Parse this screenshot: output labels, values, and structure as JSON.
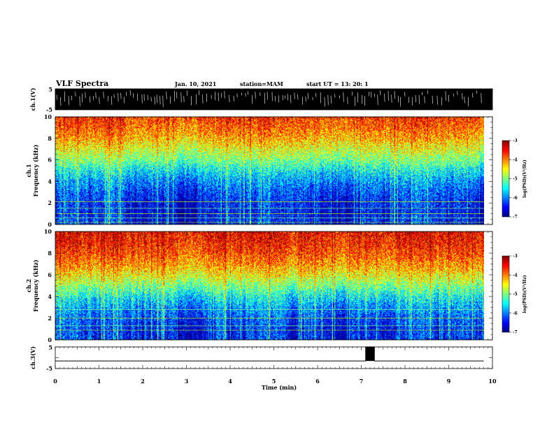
{
  "header": {
    "title": "VLF Spectra",
    "date": "Jan. 10, 2021",
    "station": "station=MAM",
    "start": "start UT = 13: 20: 1"
  },
  "chart_data": [
    {
      "type": "line",
      "panel": "ch1_waveform",
      "ylabel": "ch.1(V)",
      "ylim": [
        -5,
        5
      ],
      "yticks": [
        "5",
        "-5"
      ],
      "xlim": [
        0,
        10
      ],
      "note_visual": "dense burst waveform filling the full range over 0 to 9.8 min"
    },
    {
      "type": "heatmap",
      "panel": "ch1_spectrogram",
      "ylabel": "ch.1\nFrequency (kHz)",
      "ylabel_line1": "ch.1",
      "ylabel_line2": "Frequency (kHz)",
      "ylim": [
        0,
        10
      ],
      "yticks": [
        "0",
        "2",
        "4",
        "6",
        "8",
        "10"
      ],
      "xlim": [
        0,
        10
      ],
      "data_extent_min": 9.8,
      "colorbar": {
        "label": "log(PSD)(V²/Hz)",
        "range": [
          -7,
          -3
        ],
        "ticks": [
          "-3",
          "-4",
          "-5",
          "-6",
          "-7"
        ],
        "colors": [
          "#00007f",
          "#0000ff",
          "#007fff",
          "#00ffff",
          "#7fff7f",
          "#ffff00",
          "#ff7f00",
          "#ff0000",
          "#7f0000"
        ]
      },
      "profile": {
        "freq_khz": [
          0,
          1,
          2,
          3,
          4,
          5,
          6,
          7,
          8,
          9,
          10
        ],
        "log_psd_typical": [
          -6.4,
          -6.5,
          -6.4,
          -6.2,
          -5.9,
          -5.5,
          -5.0,
          -4.6,
          -4.2,
          -3.9,
          -3.7
        ]
      },
      "lines_khz": [
        0.2,
        0.6,
        1.0,
        1.5,
        2.1
      ]
    },
    {
      "type": "heatmap",
      "panel": "ch2_spectrogram",
      "ylabel_line1": "ch.2",
      "ylabel_line2": "Frequency (kHz)",
      "ylim": [
        0,
        10
      ],
      "yticks": [
        "0",
        "2",
        "4",
        "6",
        "8",
        "10"
      ],
      "xlim": [
        0,
        10
      ],
      "data_extent_min": 9.8,
      "colorbar": {
        "label": "log(PSD)(V²/Hz)",
        "range": [
          -7,
          -3
        ],
        "ticks": [
          "-3",
          "-4",
          "-5",
          "-6",
          "-7"
        ],
        "colors": [
          "#00007f",
          "#0000ff",
          "#007fff",
          "#00ffff",
          "#7fff7f",
          "#ffff00",
          "#ff7f00",
          "#ff0000",
          "#7f0000"
        ]
      },
      "profile": {
        "freq_khz": [
          0,
          1,
          2,
          3,
          4,
          5,
          6,
          7,
          8,
          9,
          10
        ],
        "log_psd_typical": [
          -6.4,
          -6.4,
          -6.2,
          -5.9,
          -5.5,
          -5.0,
          -4.5,
          -4.1,
          -3.8,
          -3.6,
          -3.5
        ]
      },
      "lines_khz": [
        0.9,
        1.3,
        2.0,
        2.8
      ]
    },
    {
      "type": "line",
      "panel": "ch3_waveform",
      "ylabel": "ch.3(V)",
      "ylim": [
        -5,
        5
      ],
      "yticks": [
        "5",
        "-5"
      ],
      "xlim": [
        0,
        10
      ],
      "baseline_v": -1.5,
      "pulse": {
        "start_min": 7.1,
        "end_min": 7.3,
        "high_v": 5
      }
    }
  ],
  "xaxis": {
    "label": "Time (min)",
    "ticks": [
      "0",
      "1",
      "2",
      "3",
      "4",
      "5",
      "6",
      "7",
      "8",
      "9",
      "10"
    ]
  }
}
